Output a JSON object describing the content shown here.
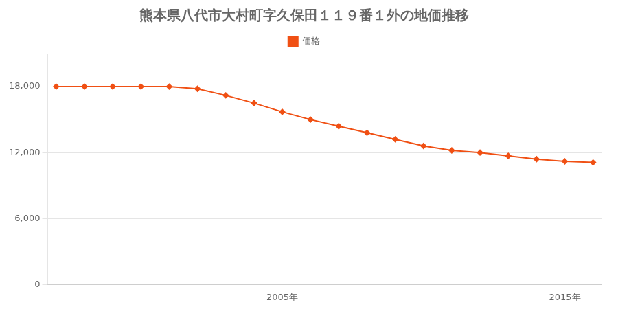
{
  "chart_data": {
    "type": "line",
    "title": "熊本県八代市大村町字久保田１１９番１外の地価推移",
    "x": [
      1997,
      1998,
      1999,
      2000,
      2001,
      2002,
      2003,
      2004,
      2005,
      2006,
      2007,
      2008,
      2009,
      2010,
      2011,
      2012,
      2013,
      2014,
      2015,
      2016
    ],
    "series": [
      {
        "name": "価格",
        "color": "#f05014",
        "values": [
          18000,
          18000,
          18000,
          18000,
          18000,
          17800,
          17200,
          16500,
          15700,
          15000,
          14400,
          13800,
          13200,
          12600,
          12200,
          12000,
          11700,
          11400,
          11200,
          11100
        ]
      }
    ],
    "xlim": [
      1996.7,
      2016.3
    ],
    "xticks": [
      {
        "value": 2005,
        "label": "2005年"
      },
      {
        "value": 2015,
        "label": "2015年"
      }
    ],
    "ylim": [
      0,
      21000
    ],
    "yticks": [
      0,
      {
        "value": 6000,
        "label": "6,000"
      },
      {
        "value": 12000,
        "label": "12,000"
      },
      {
        "value": 18000,
        "label": "18,000"
      }
    ],
    "grid": "y",
    "legend": "top",
    "marker": "diamond"
  }
}
